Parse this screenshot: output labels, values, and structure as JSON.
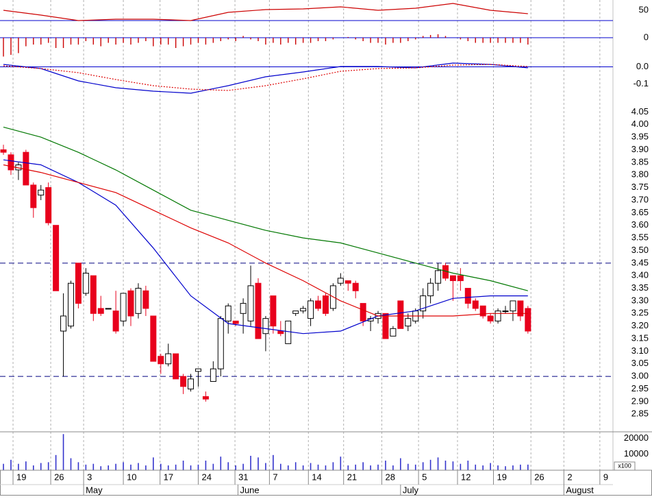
{
  "chart_data": [
    {
      "type": "line",
      "ylim": [
        20,
        65
      ],
      "yticks": [
        50
      ],
      "hlines": [
        35
      ],
      "hline_color": "#0000cc",
      "series": [
        {
          "color": "#cc0000",
          "x": [
            0,
            5,
            10,
            15,
            20,
            25,
            30,
            35,
            40,
            45,
            50,
            55,
            60,
            65,
            70
          ],
          "values": [
            50,
            43,
            35,
            37,
            37,
            35,
            47,
            51,
            52,
            55,
            50,
            53,
            60,
            50,
            45
          ]
        }
      ]
    },
    {
      "type": "bar",
      "ylim": [
        -0.06,
        0.02
      ],
      "yticks": [
        0
      ],
      "color": "#cc0000",
      "zero_color": "#0000cc",
      "values": [
        -0.055,
        -0.05,
        -0.045,
        -0.025,
        -0.02,
        -0.02,
        -0.015,
        -0.03,
        -0.03,
        -0.02,
        -0.02,
        -0.01,
        -0.02,
        -0.025,
        -0.015,
        -0.02,
        -0.015,
        -0.02,
        -0.015,
        -0.01,
        -0.025,
        -0.02,
        -0.02,
        -0.03,
        -0.025,
        -0.02,
        -0.015,
        -0.02,
        -0.015,
        -0.01,
        -0.005,
        -0.01,
        0.005,
        -0.005,
        -0.01,
        -0.02,
        -0.015,
        -0.02,
        -0.015,
        -0.02,
        -0.015,
        -0.015,
        -0.01,
        -0.01,
        -0.005,
        0,
        0.002,
        -0.005,
        -0.01,
        -0.015,
        -0.015,
        -0.02,
        -0.015,
        -0.015,
        -0.01,
        -0.005,
        0.005,
        0.008,
        0.01,
        0.005,
        0,
        -0.005,
        -0.01,
        -0.015,
        -0.015,
        -0.015,
        -0.015,
        -0.015,
        -0.015,
        -0.015,
        -0.02
      ]
    },
    {
      "type": "line",
      "ylim": [
        -0.17,
        0.05
      ],
      "yticks": [
        {
          "value": 0,
          "label": "0.0"
        },
        -0.1
      ],
      "zero_color": "#0000cc",
      "series": [
        {
          "color": "#0000cc",
          "x": [
            0,
            5,
            10,
            15,
            20,
            25,
            30,
            35,
            40,
            45,
            50,
            55,
            60,
            65,
            70
          ],
          "values": [
            0.014,
            -0.01,
            -0.082,
            -0.122,
            -0.142,
            -0.154,
            -0.11,
            -0.058,
            -0.03,
            0.002,
            0.002,
            -0.006,
            0.022,
            0.014,
            -0.006
          ]
        },
        {
          "color": "#dd0000",
          "style": "dotted",
          "x": [
            0,
            5,
            10,
            15,
            20,
            25,
            30,
            35,
            40,
            45,
            50,
            55,
            60,
            65,
            70
          ],
          "values": [
            0.006,
            -0.01,
            -0.034,
            -0.074,
            -0.11,
            -0.13,
            -0.138,
            -0.11,
            -0.07,
            -0.026,
            -0.01,
            -0.006,
            0.01,
            0.014,
            0.002
          ]
        }
      ]
    },
    {
      "type": "candlestick",
      "ylim": [
        2.78,
        4.1
      ],
      "up_color": "#ffffff",
      "down_color": "#e8001c",
      "hlines": [
        3.45,
        3
      ],
      "hline_color": "#000080",
      "yticks": [
        4.05,
        {
          "value": 4,
          "label": "4.00"
        },
        3.95,
        {
          "value": 3.9,
          "label": "3.90"
        },
        3.85,
        {
          "value": 3.8,
          "label": "3.80"
        },
        3.75,
        {
          "value": 3.7,
          "label": "3.70"
        },
        3.65,
        {
          "value": 3.6,
          "label": "3.60"
        },
        3.55,
        {
          "value": 3.5,
          "label": "3.50"
        },
        3.45,
        {
          "value": 3.4,
          "label": "3.40"
        },
        3.35,
        {
          "value": 3.3,
          "label": "3.30"
        },
        3.25,
        {
          "value": 3.2,
          "label": "3.20"
        },
        3.15,
        {
          "value": 3.1,
          "label": "3.10"
        },
        3.05,
        {
          "value": 3,
          "label": "3.00"
        },
        2.95,
        {
          "value": 2.9,
          "label": "2.90"
        },
        2.85
      ],
      "open": [
        3.9,
        3.88,
        3.82,
        3.89,
        3.76,
        3.72,
        3.75,
        3.6,
        3.18,
        3.2,
        3.45,
        3.33,
        3.4,
        3.27,
        3.27,
        3.26,
        3.22,
        3.34,
        3.25,
        3.34,
        3.24,
        3.08,
        3.05,
        3.09,
        3.0,
        2.95,
        3.02,
        2.92,
        2.98,
        3.03,
        3.22,
        3.22,
        3.25,
        3.22,
        3.37,
        3.17,
        3.32,
        3.18,
        3.13,
        3.25,
        3.26,
        3.23,
        3.3,
        3.32,
        3.27,
        3.37,
        3.38,
        3.37,
        3.29,
        3.22,
        3.23,
        3.25,
        3.16,
        3.3,
        3.2,
        3.22,
        3.26,
        3.32,
        3.37,
        3.44,
        3.4,
        3.4,
        3.35,
        3.3,
        3.28,
        3.24,
        3.22,
        3.26,
        3.26,
        3.3,
        3.27
      ],
      "high": [
        3.92,
        3.89,
        3.85,
        3.9,
        3.77,
        3.76,
        3.77,
        3.6,
        3.33,
        3.38,
        3.45,
        3.43,
        3.4,
        3.32,
        3.27,
        3.34,
        3.33,
        3.35,
        3.37,
        3.36,
        3.24,
        3.09,
        3.13,
        3.09,
        3.01,
        3.01,
        3.03,
        2.94,
        3.06,
        3.24,
        3.29,
        3.22,
        3.31,
        3.44,
        3.39,
        3.24,
        3.32,
        3.22,
        3.22,
        3.26,
        3.28,
        3.31,
        3.32,
        3.33,
        3.37,
        3.41,
        3.38,
        3.38,
        3.29,
        3.24,
        3.26,
        3.25,
        3.2,
        3.3,
        3.25,
        3.27,
        3.35,
        3.39,
        3.45,
        3.45,
        3.4,
        3.43,
        3.35,
        3.31,
        3.28,
        3.25,
        3.27,
        3.28,
        3.3,
        3.3,
        3.28
      ],
      "low": [
        3.88,
        3.8,
        3.78,
        3.76,
        3.63,
        3.7,
        3.6,
        3.34,
        3.0,
        3.19,
        3.27,
        3.32,
        3.22,
        3.24,
        3.27,
        3.17,
        3.2,
        3.2,
        3.23,
        3.24,
        3.06,
        3.01,
        3.04,
        2.99,
        2.93,
        2.94,
        2.96,
        2.9,
        2.98,
        3.0,
        3.17,
        3.2,
        3.17,
        3.2,
        3.15,
        3.1,
        3.17,
        3.16,
        3.13,
        3.24,
        3.25,
        3.2,
        3.26,
        3.24,
        3.26,
        3.36,
        3.34,
        3.31,
        3.2,
        3.18,
        3.21,
        3.15,
        3.16,
        3.19,
        3.18,
        3.21,
        3.23,
        3.29,
        3.34,
        3.38,
        3.3,
        3.34,
        3.27,
        3.26,
        3.23,
        3.21,
        3.21,
        3.25,
        3.22,
        3.22,
        3.17
      ],
      "close": [
        3.89,
        3.82,
        3.84,
        3.76,
        3.67,
        3.74,
        3.61,
        3.34,
        3.24,
        3.37,
        3.29,
        3.41,
        3.25,
        3.25,
        3.27,
        3.18,
        3.33,
        3.24,
        3.35,
        3.27,
        3.06,
        3.05,
        3.09,
        2.99,
        2.96,
        2.99,
        3.03,
        2.91,
        3.03,
        3.23,
        3.28,
        3.21,
        3.29,
        3.36,
        3.15,
        3.23,
        3.2,
        3.17,
        3.22,
        3.26,
        3.27,
        3.3,
        3.27,
        3.25,
        3.36,
        3.39,
        3.37,
        3.34,
        3.22,
        3.23,
        3.25,
        3.15,
        3.19,
        3.19,
        3.23,
        3.26,
        3.32,
        3.37,
        3.42,
        3.39,
        3.38,
        3.38,
        3.29,
        3.27,
        3.24,
        3.22,
        3.26,
        3.26,
        3.3,
        3.24,
        3.18
      ],
      "series": [
        {
          "color": "#0000cc",
          "x": [
            0,
            5,
            10,
            15,
            20,
            25,
            30,
            35,
            40,
            45,
            50,
            55,
            60,
            65,
            70
          ],
          "values": [
            3.86,
            3.84,
            3.77,
            3.68,
            3.51,
            3.32,
            3.21,
            3.19,
            3.17,
            3.18,
            3.24,
            3.26,
            3.31,
            3.32,
            3.32
          ]
        },
        {
          "color": "#dd0000",
          "x": [
            0,
            5,
            10,
            15,
            20,
            25,
            30,
            35,
            40,
            45,
            50,
            55,
            60,
            65,
            70
          ],
          "values": [
            3.84,
            3.81,
            3.77,
            3.73,
            3.66,
            3.59,
            3.53,
            3.45,
            3.38,
            3.3,
            3.24,
            3.24,
            3.24,
            3.25,
            3.25
          ]
        },
        {
          "color": "#007700",
          "x": [
            0,
            5,
            10,
            15,
            20,
            25,
            30,
            35,
            40,
            45,
            50,
            55,
            60,
            65,
            70
          ],
          "values": [
            3.99,
            3.95,
            3.89,
            3.82,
            3.74,
            3.66,
            3.62,
            3.58,
            3.55,
            3.53,
            3.49,
            3.45,
            3.41,
            3.38,
            3.34
          ]
        }
      ]
    },
    {
      "type": "bar",
      "ylim": [
        0,
        24000
      ],
      "yticks": [
        20000,
        10000
      ],
      "color": "#3333cc",
      "unit_label": "x100",
      "values": [
        4000,
        6500,
        4000,
        5500,
        3000,
        4500,
        5000,
        9500,
        22600,
        7500,
        5000,
        3500,
        4000,
        2500,
        3000,
        4000,
        5000,
        3500,
        4500,
        3000,
        8000,
        4000,
        3000,
        3500,
        6000,
        3000,
        3500,
        6000,
        4000,
        8500,
        5000,
        3000,
        4000,
        9000,
        8000,
        4500,
        9500,
        4000,
        3000,
        5000,
        3000,
        4500,
        3500,
        3000,
        5000,
        8500,
        3000,
        3500,
        5000,
        3000,
        3500,
        6000,
        3000,
        7500,
        4000,
        3500,
        5000,
        6500,
        8000,
        6000,
        5500,
        4000,
        6000,
        3500,
        3000,
        4500,
        3000,
        2500,
        3000,
        3500,
        3500
      ],
      "xlim": [
        -0.46,
        81.35
      ],
      "xticks": [
        {
          "value": 1.28,
          "label": "19"
        },
        {
          "value": 6.31,
          "label": "26"
        },
        {
          "value": 10.7,
          "label": "3"
        },
        {
          "value": 16.0,
          "label": "10"
        },
        {
          "value": 20.9,
          "label": "17"
        },
        {
          "value": 26.0,
          "label": "24"
        },
        {
          "value": 30.9,
          "label": "31"
        },
        {
          "value": 35.5,
          "label": "7"
        },
        {
          "value": 40.7,
          "label": "14"
        },
        {
          "value": 45.4,
          "label": "21"
        },
        {
          "value": 50.5,
          "label": "28"
        },
        {
          "value": 55.4,
          "label": "5"
        },
        {
          "value": 60.6,
          "label": "12"
        },
        {
          "value": 65.4,
          "label": "19"
        },
        {
          "value": 70.4,
          "label": "26"
        },
        {
          "value": 74.8,
          "label": "2"
        },
        {
          "value": 79.6,
          "label": "9"
        }
      ],
      "month_ticks": [
        {
          "value": 10.7,
          "label": "May"
        },
        {
          "value": 31.3,
          "label": "June"
        },
        {
          "value": 53.0,
          "label": "July"
        },
        {
          "value": 74.8,
          "label": "August"
        }
      ]
    }
  ]
}
